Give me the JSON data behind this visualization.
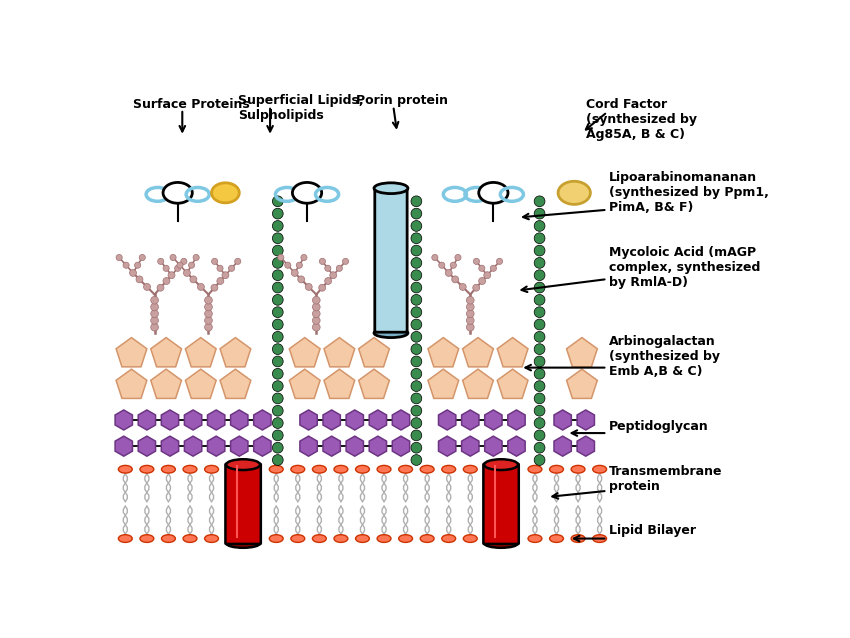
{
  "bg_color": "#ffffff",
  "fig_width": 8.5,
  "fig_height": 6.38,
  "labels": {
    "surface_proteins": "Surface Proteins",
    "superficial_lipids": "Superficial Lipids,\nSulpholipids",
    "porin_protein": "Porin protein",
    "cord_factor": "Cord Factor\n(synthesized by\nAg85A, B & C)",
    "lipoarabino": "Lipoarabinomananan\n(synthesized by Ppm1,\nPimA, B& F)",
    "mycoloic": "Mycoloic Acid (mAGP\ncomplex, synthesized\nby RmlA-D)",
    "arbino": "Arbinogalactan\n(synthesized by\nEmb A,B & C)",
    "peptido": "Peptidoglycan",
    "transmem": "Transmembrane\nprotein",
    "lipid": "Lipid Bilayer"
  },
  "colors": {
    "white_ellipse": "#ffffff",
    "blue_ring": "#7ec8e3",
    "yellow_ellipse": "#f5c842",
    "green_dots": "#3a8c4e",
    "pink_bead": "#c9a0a0",
    "pink_stem": "#a07070",
    "peach_pentagon_face": "#f5cba7",
    "peach_pentagon_edge": "#d4956a",
    "purple_hex_face": "#9b59b6",
    "purple_hex_edge": "#6c3483",
    "red_cyl": "#cc0000",
    "red_cyl_top": "#dd2222",
    "orange_head_face": "#ff7755",
    "orange_head_edge": "#cc3300",
    "gray_tail": "#b0b0b0",
    "light_blue_porin": "#add8e6",
    "cord_yellow": "#f0d070",
    "cord_yellow_edge": "#c8a030"
  }
}
